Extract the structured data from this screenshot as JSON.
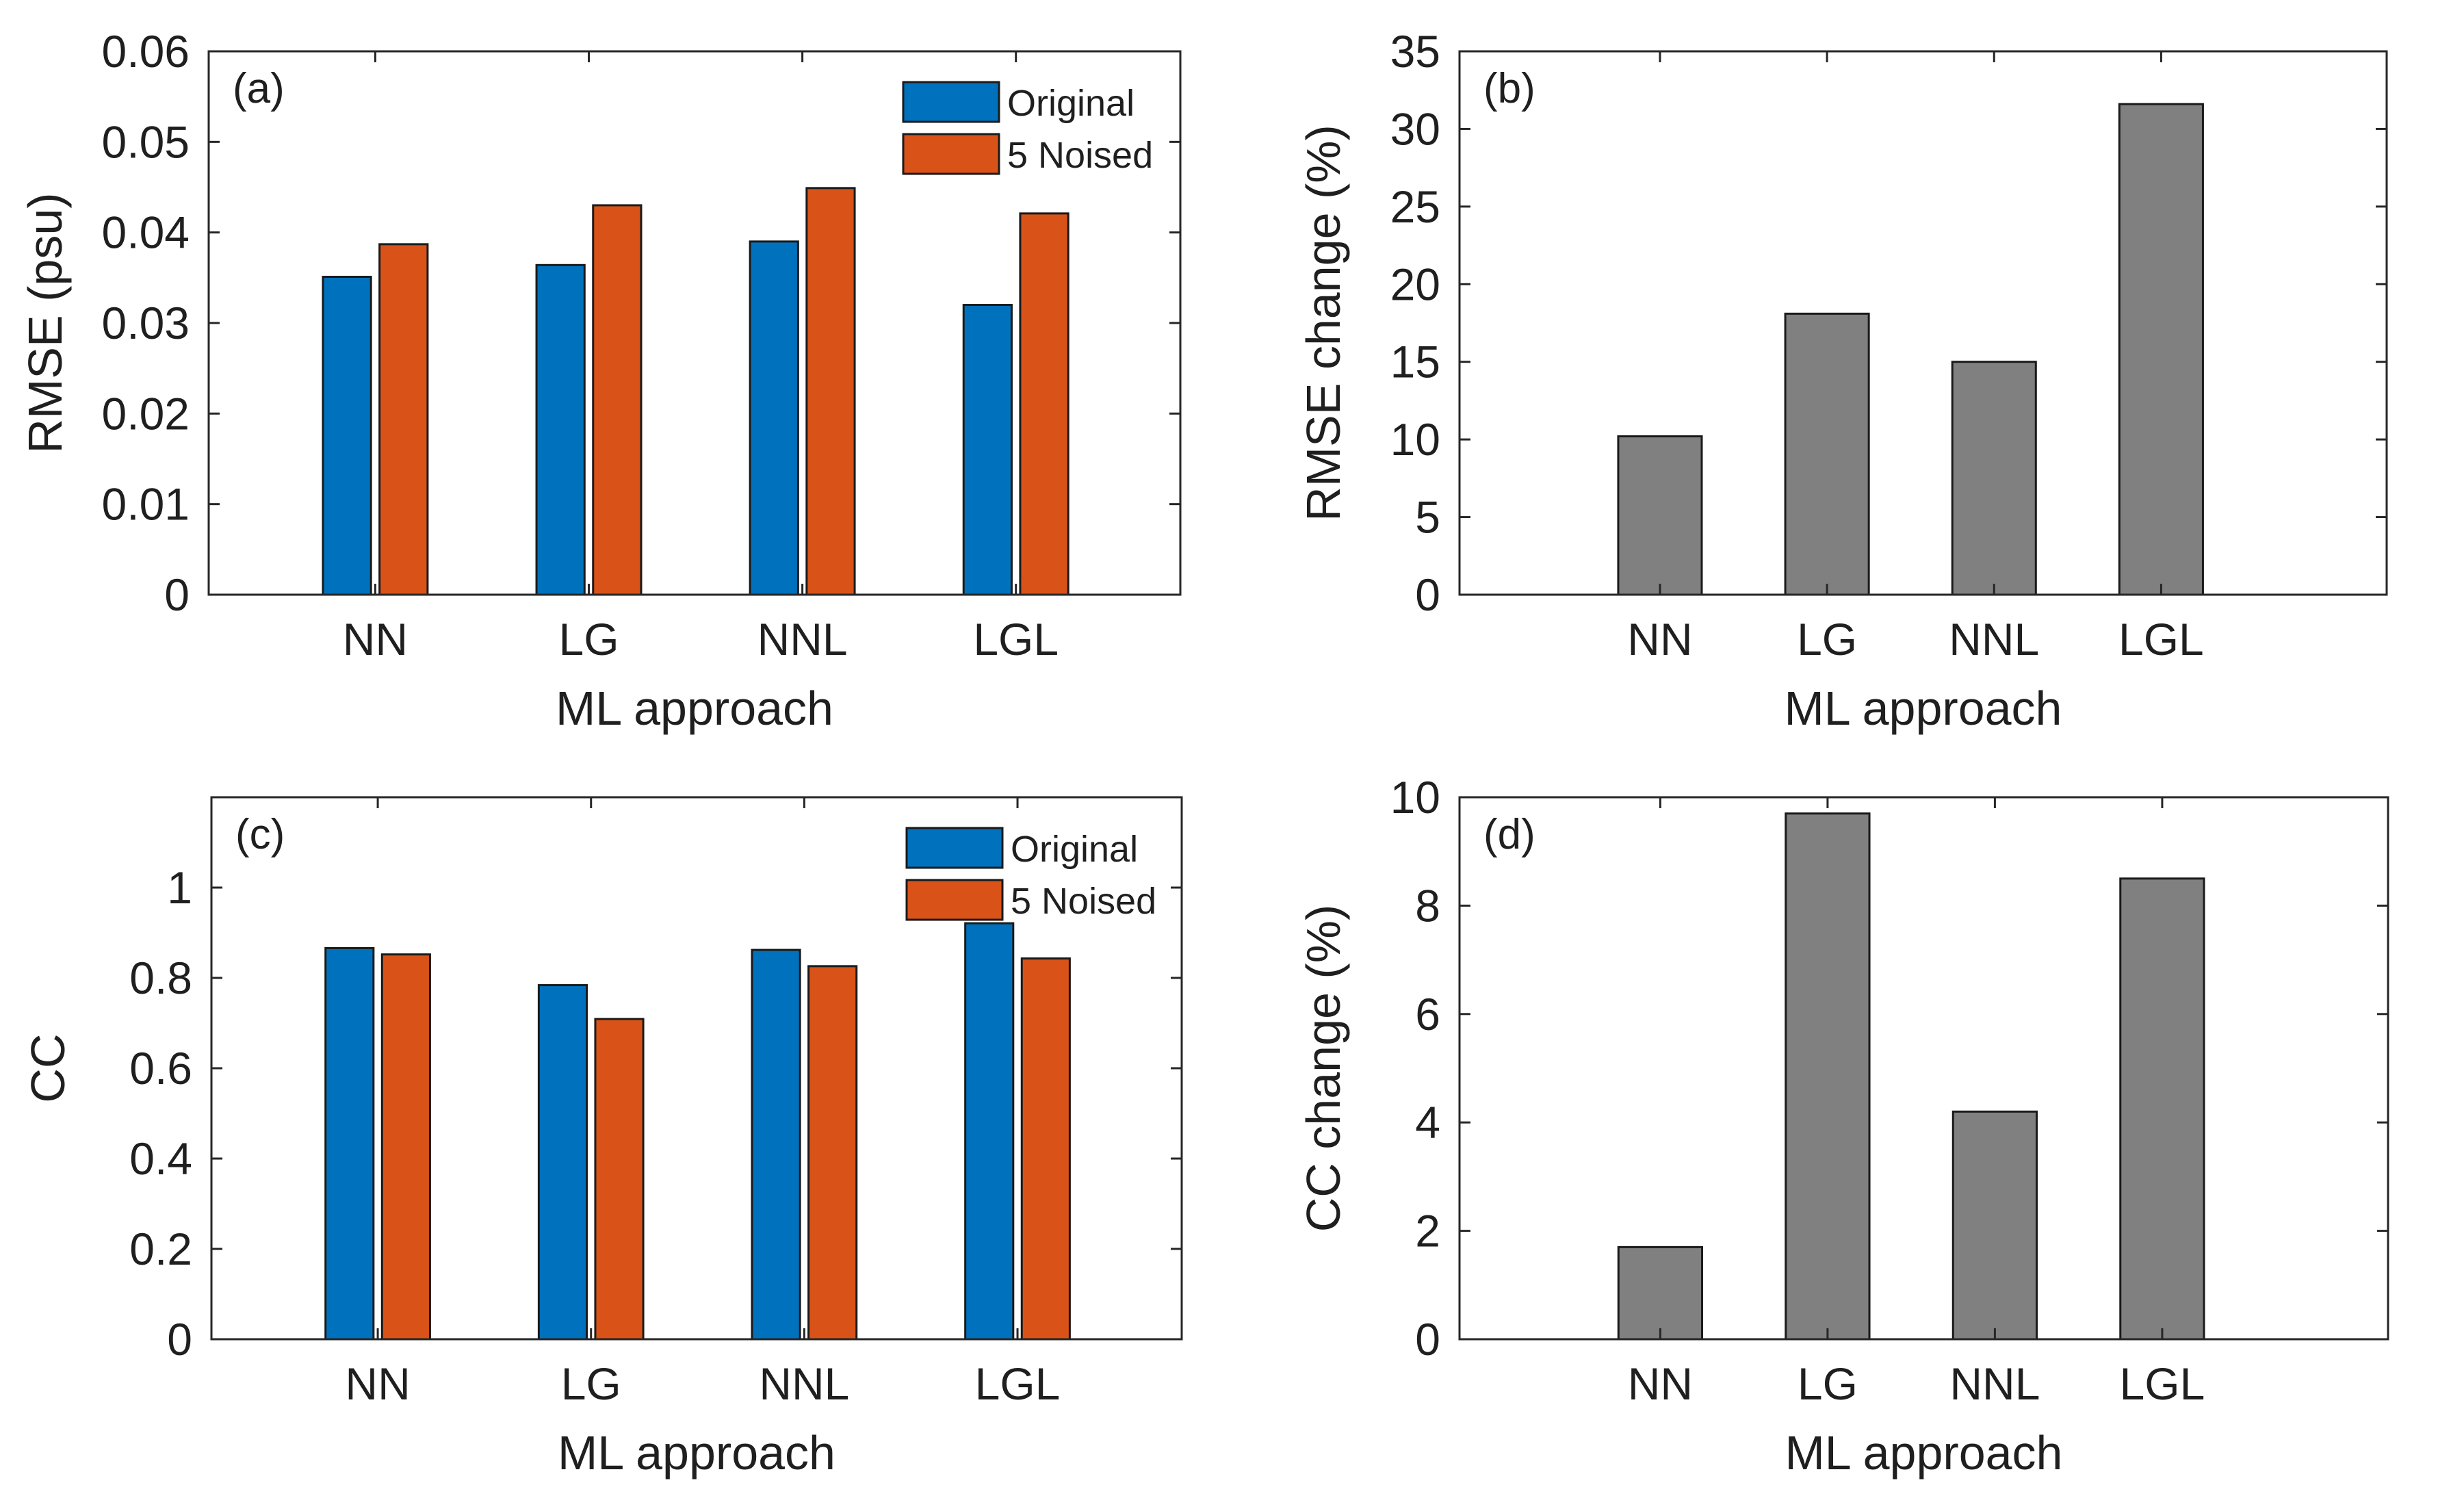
{
  "colors": {
    "original": "#0072BD",
    "noised": "#D95319",
    "change": "#808080"
  },
  "chart_data": [
    {
      "panel": "(a)",
      "type": "bar",
      "categories": [
        "NN",
        "LG",
        "NNL",
        "LGL"
      ],
      "series": [
        {
          "name": "Original",
          "values": [
            0.0351,
            0.0364,
            0.039,
            0.032
          ]
        },
        {
          "name": "5 Noised",
          "values": [
            0.0387,
            0.043,
            0.0449,
            0.0421
          ]
        }
      ],
      "xlabel": "ML approach",
      "ylabel": "RMSE (psu)",
      "ylim": [
        0,
        0.06
      ],
      "yticks": [
        "0",
        "0.01",
        "0.02",
        "0.03",
        "0.04",
        "0.05",
        "0.06"
      ],
      "legend": "top-right"
    },
    {
      "panel": "(b)",
      "type": "bar",
      "categories": [
        "NN",
        "LG",
        "NNL",
        "LGL"
      ],
      "series": [
        {
          "name": "RMSE change",
          "values": [
            10.2,
            18.1,
            15.0,
            31.6
          ]
        }
      ],
      "xlabel": "ML approach",
      "ylabel": "RMSE change (%)",
      "ylim": [
        0,
        35
      ],
      "yticks": [
        "0",
        "5",
        "10",
        "15",
        "20",
        "25",
        "30",
        "35"
      ]
    },
    {
      "panel": "(c)",
      "type": "bar",
      "categories": [
        "NN",
        "LG",
        "NNL",
        "LGL"
      ],
      "series": [
        {
          "name": "Original",
          "values": [
            0.866,
            0.784,
            0.862,
            0.921
          ]
        },
        {
          "name": "5 Noised",
          "values": [
            0.852,
            0.709,
            0.826,
            0.843
          ]
        }
      ],
      "xlabel": "ML approach",
      "ylabel": "CC",
      "ylim": [
        0,
        1.2
      ],
      "yticks": [
        "0",
        "0.2",
        "0.4",
        "0.6",
        "0.8",
        "1"
      ],
      "legend": "top-right"
    },
    {
      "panel": "(d)",
      "type": "bar",
      "categories": [
        "NN",
        "LG",
        "NNL",
        "LGL"
      ],
      "series": [
        {
          "name": "CC change",
          "values": [
            1.7,
            9.7,
            4.2,
            8.5
          ]
        }
      ],
      "xlabel": "ML approach",
      "ylabel": "CC change (%)",
      "ylim": [
        0,
        10
      ],
      "yticks": [
        "0",
        "2",
        "4",
        "6",
        "8",
        "10"
      ]
    }
  ]
}
